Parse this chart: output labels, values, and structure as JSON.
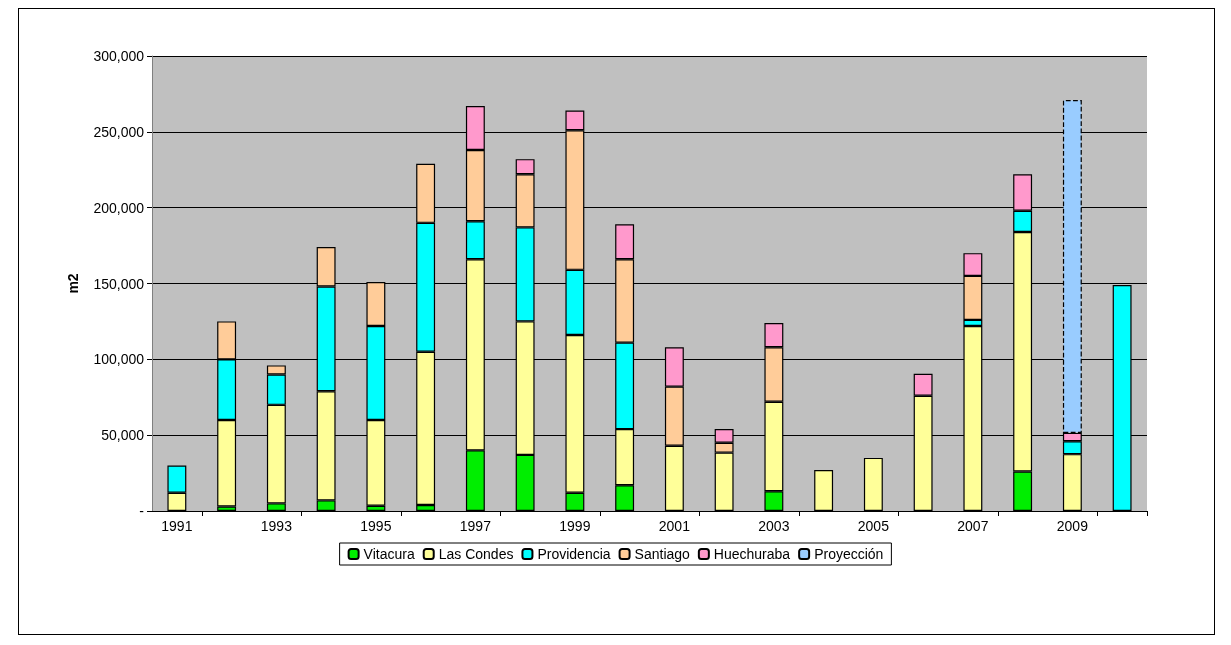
{
  "chart_data": {
    "type": "bar",
    "stacked": true,
    "ylabel": "m2",
    "categories": [
      "1991",
      null,
      "1993",
      null,
      "1995",
      null,
      "1997",
      null,
      "1999",
      null,
      "2001",
      null,
      "2003",
      null,
      "2005",
      null,
      "2007",
      null,
      "2009",
      null
    ],
    "series": [
      {
        "name": "Vitacura",
        "color": "#00ee00",
        "values": [
          null,
          3000,
          5000,
          7000,
          3500,
          4000,
          40000,
          37000,
          12000,
          17000,
          null,
          null,
          13000,
          null,
          null,
          null,
          null,
          26000,
          null,
          null
        ]
      },
      {
        "name": "Las Condes",
        "color": "#ffff99",
        "values": [
          12000,
          57000,
          65000,
          72000,
          56500,
          101000,
          126000,
          88000,
          104000,
          37000,
          43000,
          38500,
          59000,
          27000,
          35000,
          76000,
          122000,
          158000,
          37500,
          null
        ]
      },
      {
        "name": "Providencia",
        "color": "#00ffff",
        "values": [
          18000,
          40000,
          20000,
          69000,
          62000,
          85000,
          25000,
          62000,
          43000,
          57000,
          null,
          null,
          null,
          null,
          null,
          null,
          4000,
          14000,
          8500,
          149000
        ]
      },
      {
        "name": "Santiago",
        "color": "#ffcc99",
        "values": [
          null,
          25000,
          6000,
          26000,
          29000,
          39000,
          47000,
          35000,
          92000,
          55000,
          39000,
          6500,
          36000,
          null,
          null,
          null,
          29000,
          null,
          null,
          null
        ]
      },
      {
        "name": "Huechuraba",
        "color": "#ff99cc",
        "values": [
          null,
          null,
          null,
          null,
          null,
          null,
          29000,
          10000,
          13000,
          23000,
          26000,
          9000,
          16000,
          null,
          null,
          14500,
          15000,
          24000,
          5500,
          null
        ]
      },
      {
        "name": "Proyección",
        "color": "#99ccff",
        "line_style": "dashed",
        "values": [
          null,
          null,
          null,
          null,
          null,
          null,
          null,
          null,
          null,
          null,
          null,
          null,
          null,
          null,
          null,
          null,
          null,
          null,
          219500,
          null
        ]
      }
    ],
    "ylim": [
      0,
      300000
    ],
    "yticks": [
      {
        "value": 0,
        "label": "-"
      },
      {
        "value": 50000,
        "label": "50,000"
      },
      {
        "value": 100000,
        "label": "100,000"
      },
      {
        "value": 150000,
        "label": "150,000"
      },
      {
        "value": 200000,
        "label": "200,000"
      },
      {
        "value": 250000,
        "label": "250,000"
      },
      {
        "value": 300000,
        "label": "300,000"
      }
    ],
    "grid": "y",
    "legend": "bottom"
  }
}
